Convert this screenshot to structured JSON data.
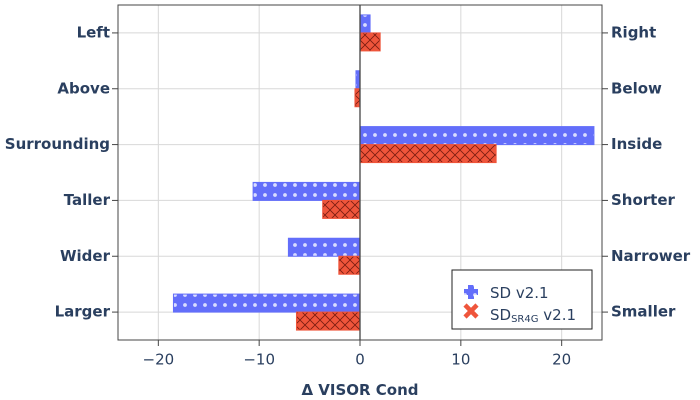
{
  "chart_data": {
    "type": "bar",
    "orientation": "horizontal",
    "categories": [
      "Left",
      "Above",
      "Surrounding",
      "Taller",
      "Wider",
      "Larger"
    ],
    "opposite_categories": [
      "Right",
      "Below",
      "Inside",
      "Shorter",
      "Narrower",
      "Smaller"
    ],
    "series": [
      {
        "name": "SD v2.1",
        "values": [
          1.0,
          -0.4,
          23.2,
          -10.6,
          -7.1,
          -18.5
        ],
        "color": "#636efa",
        "pattern": "dots"
      },
      {
        "name": "SD",
        "name_sub": "SR4G",
        "name_suffix": " v2.1",
        "values": [
          2.0,
          -0.5,
          13.5,
          -3.7,
          -2.1,
          -6.3
        ],
        "color": "#ef553b",
        "pattern": "cross-hatch"
      }
    ],
    "xlabel": "Δ VISOR Cond",
    "xlim": [
      -24,
      24
    ],
    "xticks": [
      -20,
      -10,
      0,
      10,
      20
    ],
    "xtick_labels": [
      "−20",
      "−10",
      "0",
      "10",
      "20"
    ],
    "grid": true,
    "legend_position": "bottom-right"
  }
}
